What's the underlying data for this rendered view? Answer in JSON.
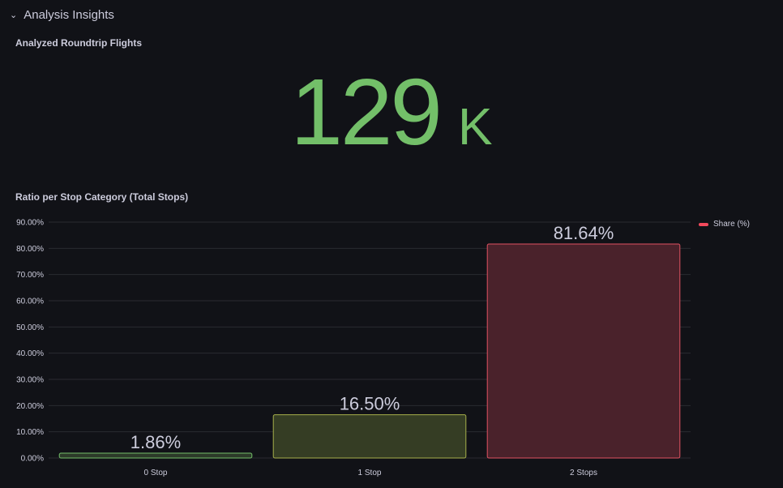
{
  "row": {
    "title": "Analysis Insights"
  },
  "stat_panel": {
    "title": "Analyzed Roundtrip Flights",
    "value": "129",
    "unit": "K",
    "color": "#73bf69"
  },
  "chart_panel": {
    "title": "Ratio per Stop Category (Total Stops)"
  },
  "chart_data": {
    "type": "bar",
    "categories": [
      "0 Stop",
      "1 Stop",
      "2 Stops"
    ],
    "series": [
      {
        "name": "Share (%)",
        "values": [
          1.86,
          16.5,
          81.64
        ]
      }
    ],
    "value_labels": [
      "1.86%",
      "16.50%",
      "81.64%"
    ],
    "bar_colors": [
      "#73bf69",
      "#a7b04b",
      "#e05262"
    ],
    "bar_fills": [
      "#2c3a29",
      "#353d24",
      "#4a222b"
    ],
    "legend_color": "#f2495c",
    "ylim": [
      0,
      90
    ],
    "yticks": [
      0,
      10,
      20,
      30,
      40,
      50,
      60,
      70,
      80,
      90
    ],
    "ytick_labels": [
      "0.00%",
      "10.00%",
      "20.00%",
      "30.00%",
      "40.00%",
      "50.00%",
      "60.00%",
      "70.00%",
      "80.00%",
      "90.00%"
    ],
    "grid": true,
    "legend_position": "top-right"
  }
}
